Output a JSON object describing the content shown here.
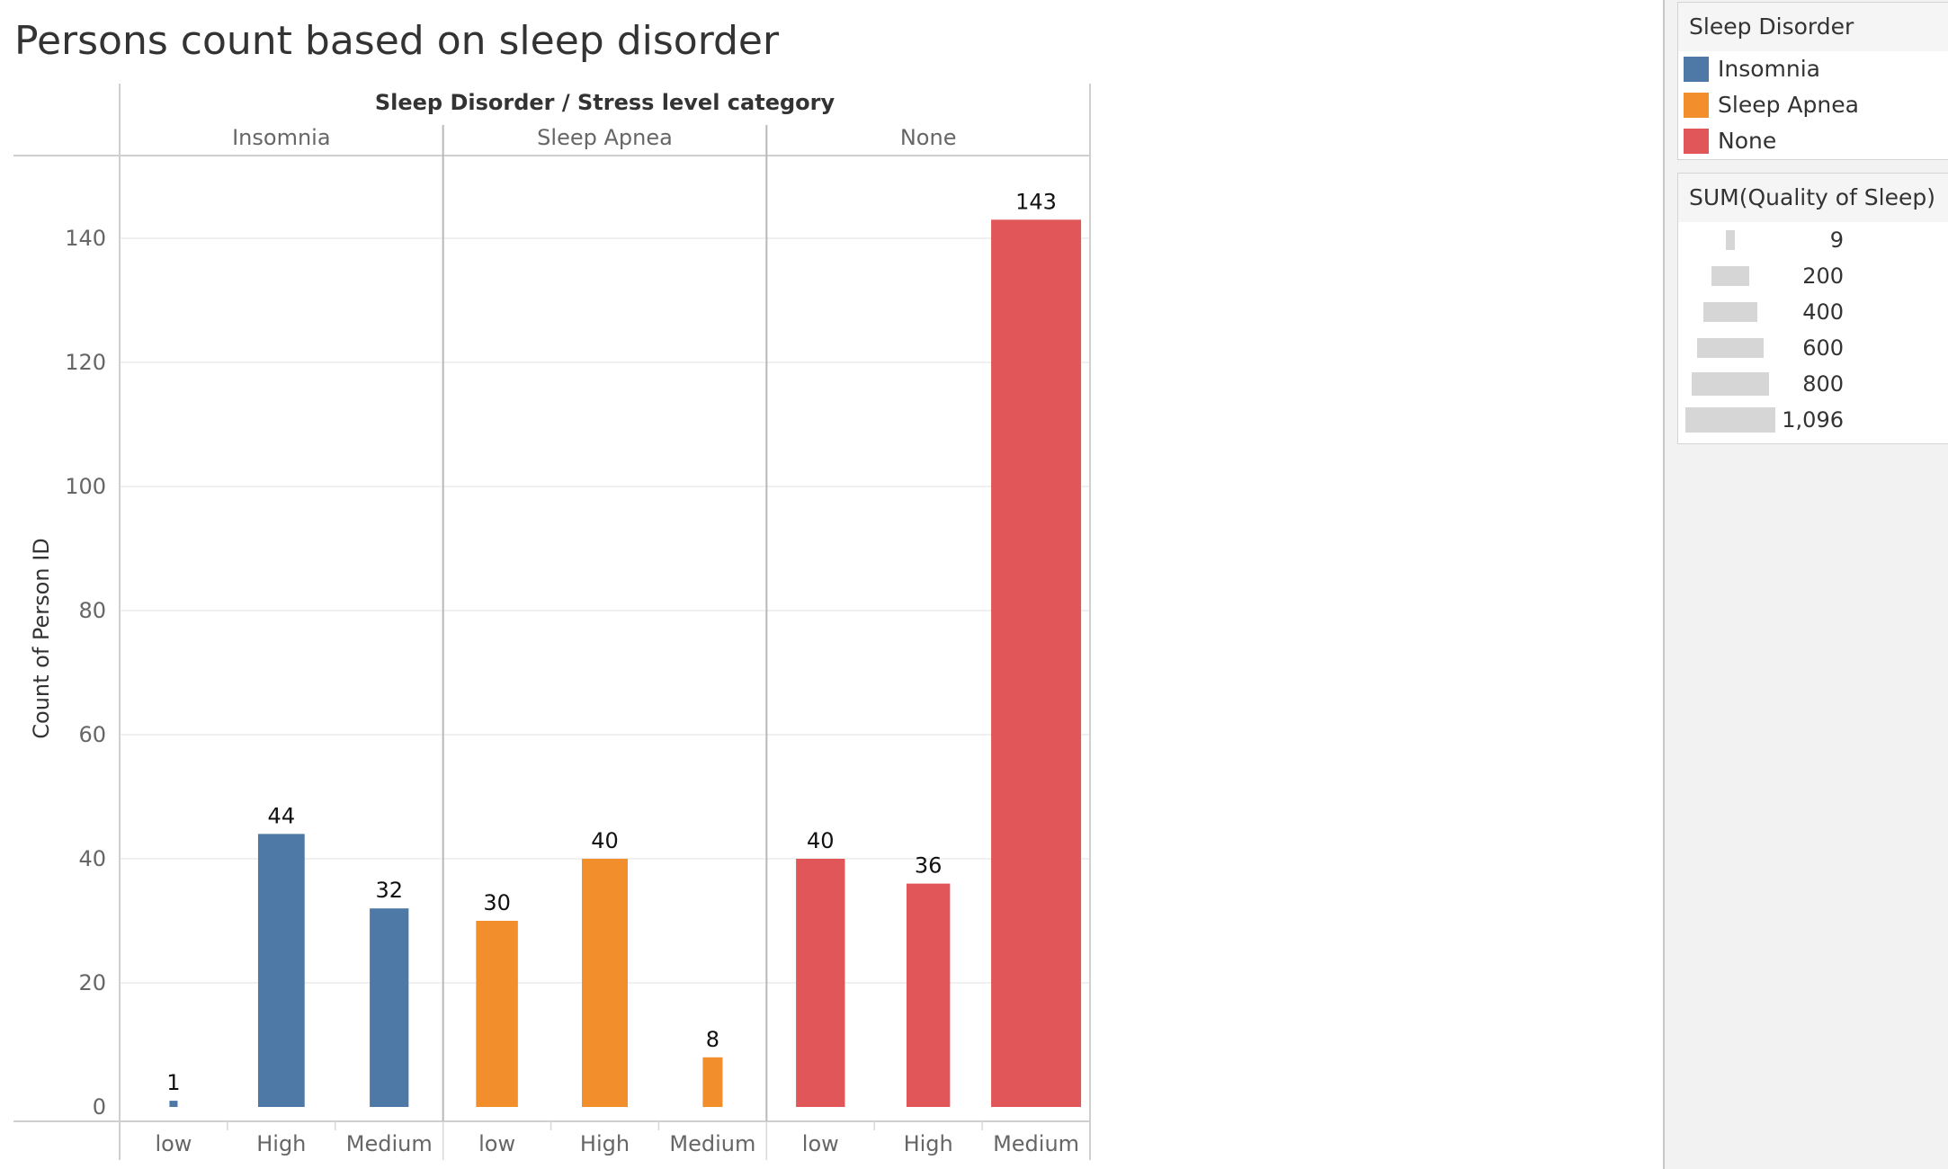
{
  "title": "Persons count based on sleep disorder",
  "chart_data": {
    "type": "bar",
    "title": "Persons count based on sleep disorder",
    "column_header": "Sleep Disorder  /  Stress level category",
    "ylabel": "Count of Person ID",
    "ylim": [
      0,
      155
    ],
    "yticks": [
      0,
      20,
      40,
      60,
      80,
      100,
      120,
      140
    ],
    "grid": true,
    "legend_position": "right",
    "panels": [
      {
        "name": "Insomnia",
        "color": "#4e79a7",
        "categories": [
          "low",
          "High",
          "Medium"
        ],
        "values": [
          1,
          44,
          32
        ],
        "sum_quality_of_sleep": [
          9,
          294,
          205
        ]
      },
      {
        "name": "Sleep Apnea",
        "color": "#f28e2b",
        "categories": [
          "low",
          "High",
          "Medium"
        ],
        "values": [
          30,
          40,
          8
        ],
        "sum_quality_of_sleep": [
          237,
          285,
          53
        ]
      },
      {
        "name": "None",
        "color": "#e15759",
        "categories": [
          "low",
          "High",
          "Medium"
        ],
        "values": [
          40,
          36,
          143
        ],
        "sum_quality_of_sleep": [
          324,
          257,
          1096
        ]
      }
    ]
  },
  "legend_color": {
    "title": "Sleep Disorder",
    "items": [
      {
        "label": "Insomnia",
        "color": "#4e79a7"
      },
      {
        "label": "Sleep Apnea",
        "color": "#f28e2b"
      },
      {
        "label": "None",
        "color": "#e15759"
      }
    ]
  },
  "legend_size": {
    "title": "SUM(Quality of Sleep)",
    "items": [
      {
        "label": "9",
        "value": 9
      },
      {
        "label": "200",
        "value": 200
      },
      {
        "label": "400",
        "value": 400
      },
      {
        "label": "600",
        "value": 600
      },
      {
        "label": "800",
        "value": 800
      },
      {
        "label": "1,096",
        "value": 1096
      }
    ]
  }
}
